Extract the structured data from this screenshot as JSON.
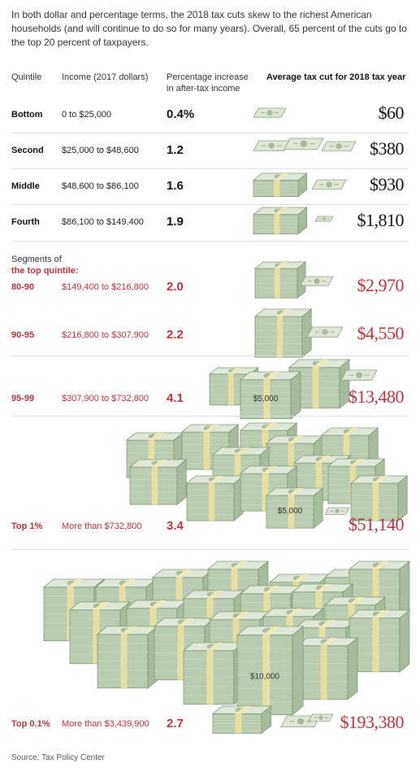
{
  "intro": "In both dollar and percentage terms, the 2018 tax cuts skew to the richest American households (and will continue to do so for many years). Overall, 65 percent of the cuts go to the top 20 percent of taxpayers.",
  "headers": {
    "quintile": "Quintile",
    "income": "Income (2017 dollars)",
    "pct_line1": "Percentage increase",
    "pct_line2": "in after-tax income",
    "cut": "Average tax cut for 2018 tax year"
  },
  "segments_label": {
    "line1": "Segments of",
    "line2": "the top quintile:"
  },
  "rows": [
    {
      "quintile": "Bottom",
      "income": "0 to $25,000",
      "pct": "0.4%",
      "cut": "$60"
    },
    {
      "quintile": "Second",
      "income": "$25,000 to $48,600",
      "pct": "1.2",
      "cut": "$380"
    },
    {
      "quintile": "Middle",
      "income": "$48,600 to $86,100",
      "pct": "1.6",
      "cut": "$930"
    },
    {
      "quintile": "Fourth",
      "income": "$86,100 to $149,400",
      "pct": "1.9",
      "cut": "$1,810"
    },
    {
      "quintile": "80-90",
      "income": "$149,400 to $216,800",
      "pct": "2.0",
      "cut": "$2,970"
    },
    {
      "quintile": "90-95",
      "income": "$216,800 to $307,900",
      "pct": "2.2",
      "cut": "$4,550"
    },
    {
      "quintile": "95-99",
      "income": "$307,900 to $732,800",
      "pct": "4.1",
      "cut": "$13,480"
    },
    {
      "quintile": "Top 1%",
      "income": "More than $732,800",
      "pct": "3.4",
      "cut": "$51,140"
    },
    {
      "quintile": "Top 0.1%",
      "income": "More than $3,439,900",
      "pct": "2.7",
      "cut": "$193,380"
    }
  ],
  "stack_labels": {
    "five_thousand": "$5,000",
    "ten_thousand": "$10,000"
  },
  "source": "Source: Tax Policy Center",
  "colors": {
    "accent_red": "#b7333d",
    "money_green": "#b9ccb0",
    "band_yellow": "#e7dea2"
  },
  "chart_data": {
    "type": "table",
    "columns": [
      "Quintile",
      "Income (2017 dollars)",
      "Percentage increase in after-tax income",
      "Average tax cut for 2018 tax year"
    ],
    "categories": [
      "Bottom",
      "Second",
      "Middle",
      "Fourth",
      "80-90",
      "90-95",
      "95-99",
      "Top 1%",
      "Top 0.1%"
    ],
    "series": [
      {
        "name": "Percentage increase in after-tax income",
        "values": [
          0.4,
          1.2,
          1.6,
          1.9,
          2.0,
          2.2,
          4.1,
          3.4,
          2.7
        ]
      },
      {
        "name": "Average tax cut for 2018 tax year",
        "values": [
          60,
          380,
          930,
          1810,
          2970,
          4550,
          13480,
          51140,
          193380
        ]
      }
    ]
  }
}
